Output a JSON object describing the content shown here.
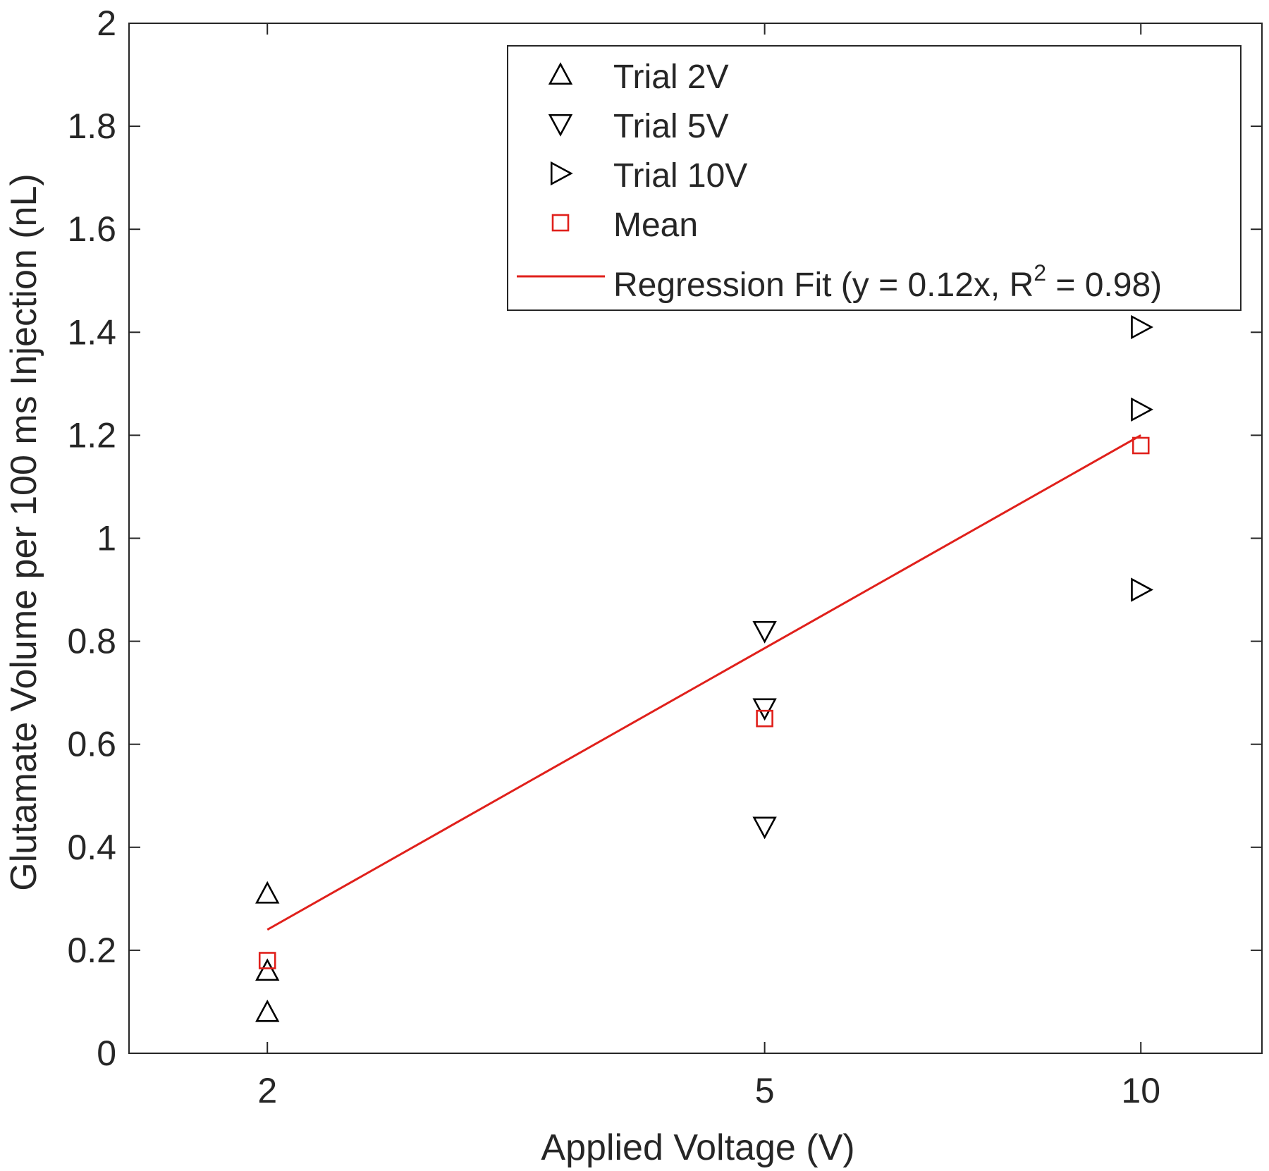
{
  "chart_data": {
    "type": "scatter",
    "xlabel": "Applied Voltage (V)",
    "ylabel": "Glutamate Volume per 100 ms Injection (nL)",
    "x_scale": "log",
    "xlim": [
      1.55,
      12.5
    ],
    "ylim": [
      0,
      2
    ],
    "x_ticks": [
      2,
      5,
      10
    ],
    "x_tick_labels": [
      "2",
      "5",
      "10"
    ],
    "y_ticks": [
      0,
      0.2,
      0.4,
      0.6,
      0.8,
      1,
      1.2,
      1.4,
      1.6,
      1.8,
      2
    ],
    "y_tick_labels": [
      "0",
      "0.2",
      "0.4",
      "0.6",
      "0.8",
      "1",
      "1.2",
      "1.4",
      "1.6",
      "1.8",
      "2"
    ],
    "grid": false,
    "legend_position": "top-right",
    "series": [
      {
        "name": "Trial 2V",
        "marker": "triangle-up",
        "color": "#000000",
        "points": [
          {
            "x": 2,
            "y": 0.31
          },
          {
            "x": 2,
            "y": 0.16
          },
          {
            "x": 2,
            "y": 0.08
          }
        ]
      },
      {
        "name": "Trial 5V",
        "marker": "triangle-down",
        "color": "#000000",
        "points": [
          {
            "x": 5,
            "y": 0.82
          },
          {
            "x": 5,
            "y": 0.67
          },
          {
            "x": 5,
            "y": 0.44
          }
        ]
      },
      {
        "name": "Trial 10V",
        "marker": "triangle-right",
        "color": "#000000",
        "points": [
          {
            "x": 10,
            "y": 1.41
          },
          {
            "x": 10,
            "y": 1.25
          },
          {
            "x": 10,
            "y": 0.9
          }
        ]
      },
      {
        "name": "Mean",
        "marker": "square",
        "color": "#e0201b",
        "points": [
          {
            "x": 2,
            "y": 0.18
          },
          {
            "x": 5,
            "y": 0.65
          },
          {
            "x": 10,
            "y": 1.18
          }
        ]
      }
    ],
    "fit": {
      "legend_prefix": "Regression Fit (y = 0.12x, R",
      "legend_sup": "2",
      "legend_suffix": " = 0.98)",
      "slope": 0.12,
      "x_range": [
        2,
        10
      ],
      "color": "#e0201b"
    }
  }
}
